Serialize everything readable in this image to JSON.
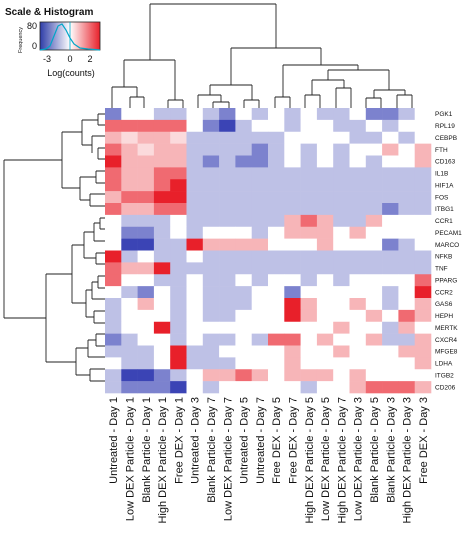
{
  "chart_data": {
    "type": "heatmap",
    "columns": [
      "Untreated - Day 1",
      "Low DEX Particle - Day 1",
      "Blank Particle - Day 1",
      "High DEX Particle - Day 1",
      "Free DEX - Day 1",
      "Untreated - Day 3",
      "Blank Particle - Day 7",
      "Low DEX Particle - Day 7",
      "Untreated - Day 5",
      "Untreated - Day 7",
      "Free DEX - Day 5",
      "Free DEX - Day 7",
      "High DEX Particle - Day 5",
      "Low DEX Particle - Day 5",
      "High DEX Particle - Day 7",
      "Low DEX Particle - Day 3",
      "Blank Particle - Day 5",
      "Blank Particle - Day 3",
      "High DEX Particle - Day 3",
      "Free DEX - Day 3"
    ],
    "rows": [
      "PGK1",
      "RPL19",
      "CEBPB",
      "FTH",
      "CD163",
      "IL1B",
      "HIF1A",
      "FOS",
      "ITBG1",
      "CCR1",
      "PECAM1",
      "MARCO",
      "NFKB",
      "TNF",
      "PPARG",
      "CCR2",
      "GAS6",
      "HEPH",
      "MERTK",
      "CXCR4",
      "MFGE8",
      "LDHA",
      "ITGB2",
      "CD206"
    ],
    "values": [
      [
        -2,
        0,
        0,
        -1,
        -1,
        0,
        -1,
        -2,
        0,
        -1,
        0,
        -1,
        0,
        -1,
        -1,
        0,
        -2,
        -2,
        -1,
        0
      ],
      [
        2,
        2,
        2,
        2,
        2,
        0,
        -2,
        -3,
        -1,
        0,
        0,
        -1,
        0,
        0,
        -1,
        -1,
        0,
        -1,
        0,
        0
      ],
      [
        1,
        0.5,
        1,
        1,
        0.5,
        -1,
        -1,
        -1,
        -1,
        -1,
        -1,
        0,
        0,
        0,
        0,
        -1,
        -1,
        0,
        -1,
        0
      ],
      [
        2,
        1,
        0.5,
        1,
        1,
        -1,
        -1,
        -1,
        -1,
        -2,
        -1,
        0,
        -1,
        0,
        -1,
        0,
        0,
        1,
        0,
        1
      ],
      [
        3,
        1,
        1,
        1,
        1,
        -1,
        -2,
        -1,
        -2,
        -2,
        -1,
        0,
        -1,
        0,
        -1,
        0,
        -1,
        0,
        0,
        1
      ],
      [
        2,
        1,
        1,
        2,
        2,
        -1,
        -1,
        -1,
        -1,
        -1,
        -1,
        -1,
        -1,
        -1,
        -1,
        -1,
        -1,
        -1,
        -1,
        -1
      ],
      [
        2,
        1,
        1,
        2,
        3,
        -1,
        -1,
        -1,
        -1,
        -1,
        -1,
        -1,
        -1,
        -1,
        -1,
        -1,
        -1,
        -1,
        -1,
        -1
      ],
      [
        1,
        2,
        2,
        3,
        3,
        -1,
        -1,
        -1,
        -1,
        -1,
        -1,
        -1,
        -1,
        -1,
        -1,
        -1,
        -1,
        -1,
        -1,
        -1
      ],
      [
        2,
        1,
        1,
        2,
        2,
        -1,
        -1,
        -1,
        -1,
        -1,
        -1,
        -1,
        -1,
        -1,
        -1,
        -1,
        -1,
        -2,
        -1,
        -1
      ],
      [
        0,
        -1,
        -1,
        -1,
        0,
        -1,
        -1,
        -1,
        -1,
        -1,
        -1,
        1,
        2,
        1,
        -1,
        -1,
        1,
        0,
        0,
        0
      ],
      [
        0,
        -2,
        -2,
        -1,
        0,
        -1,
        0,
        0,
        0,
        -1,
        0,
        1,
        1,
        1,
        0,
        1,
        0,
        0,
        0,
        0
      ],
      [
        0,
        -3,
        -3,
        -1,
        -1,
        3,
        1,
        1,
        1,
        1,
        0,
        0,
        0,
        1,
        0,
        0,
        0,
        -2,
        -1,
        0
      ],
      [
        3,
        -1,
        0,
        -1,
        -1,
        0,
        -1,
        -1,
        -1,
        -1,
        -1,
        -1,
        -1,
        -1,
        -1,
        -1,
        -1,
        -1,
        -1,
        -1
      ],
      [
        2,
        1,
        1,
        3,
        -1,
        -1,
        -1,
        -1,
        -1,
        -1,
        -1,
        -1,
        -1,
        -1,
        -1,
        -1,
        -1,
        -1,
        -1,
        -1
      ],
      [
        2,
        0,
        0,
        -1,
        -1,
        0,
        -1,
        -1,
        0,
        -1,
        0,
        0,
        -1,
        0,
        -1,
        0,
        0,
        0,
        0,
        2
      ],
      [
        0,
        -1,
        -2,
        0,
        -1,
        0,
        -1,
        -1,
        -1,
        0,
        0,
        -2,
        0,
        0,
        0,
        0,
        0,
        -1,
        0,
        3
      ],
      [
        -1,
        0,
        1,
        0,
        -1,
        0,
        -1,
        -1,
        -1,
        0,
        0,
        3,
        1,
        0,
        0,
        1,
        0,
        -1,
        0,
        1
      ],
      [
        -1,
        0,
        0,
        0,
        -1,
        0,
        -1,
        -1,
        0,
        0,
        0,
        3,
        1,
        0,
        0,
        0,
        1,
        0,
        2,
        1
      ],
      [
        -1,
        0,
        0,
        3,
        -1,
        0,
        0,
        0,
        0,
        0,
        0,
        0,
        0,
        0,
        1,
        0,
        0,
        -1,
        1,
        0
      ],
      [
        -2,
        -1,
        0,
        0,
        -1,
        0,
        -1,
        -1,
        0,
        -1,
        2,
        2,
        0,
        1,
        0,
        0,
        1,
        -1,
        -1,
        1
      ],
      [
        -1,
        -1,
        -1,
        0,
        3,
        -1,
        -1,
        0,
        0,
        0,
        0,
        1,
        0,
        0,
        1,
        0,
        0,
        0,
        1,
        1
      ],
      [
        0,
        -1,
        -1,
        0,
        3,
        -1,
        -1,
        -1,
        0,
        0,
        0,
        1,
        0,
        0,
        0,
        0,
        0,
        0,
        0,
        1
      ],
      [
        -1,
        -3,
        -3,
        -2,
        -1,
        0,
        1,
        1,
        2,
        1,
        0,
        1,
        1,
        1,
        0,
        1,
        0,
        0,
        0,
        0
      ],
      [
        -1,
        -2,
        -2,
        -2,
        -3,
        0,
        -1,
        0,
        0,
        0,
        0,
        0,
        -1,
        0,
        0,
        1,
        2,
        2,
        2,
        1
      ]
    ],
    "color_scale": {
      "min": -3,
      "max": 3,
      "low_color": "#3b44b5",
      "mid_color": "#ffffff",
      "high_color": "#e8202a"
    },
    "key": {
      "title": "Scale & Histogram",
      "freq_label": "Frequency",
      "freq_ticks": [
        "0",
        "80"
      ],
      "ticks": [
        "-3",
        "0",
        "2"
      ],
      "xlabel": "Log(counts)"
    }
  }
}
